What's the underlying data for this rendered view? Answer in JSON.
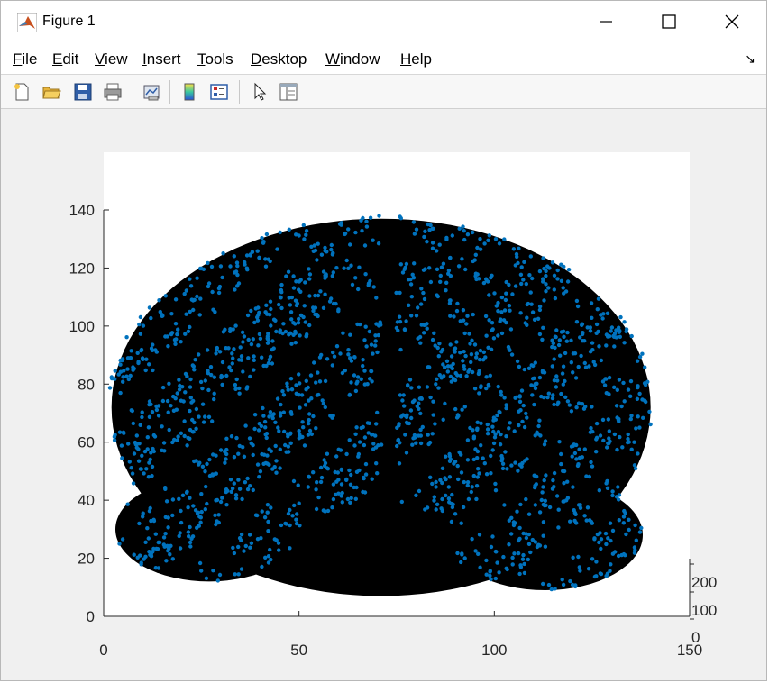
{
  "window": {
    "title": "Figure 1"
  },
  "menu": {
    "items": [
      {
        "u": "F",
        "rest": "ile"
      },
      {
        "u": "E",
        "rest": "dit"
      },
      {
        "u": "V",
        "rest": "iew"
      },
      {
        "u": "I",
        "rest": "nsert"
      },
      {
        "u": "T",
        "rest": "ools"
      },
      {
        "u": "D",
        "rest": "esktop"
      },
      {
        "u": "W",
        "rest": "indow"
      },
      {
        "u": "H",
        "rest": "elp"
      }
    ]
  },
  "toolbar": {
    "icons": [
      "new-figure-icon",
      "open-file-icon",
      "save-icon",
      "print-icon",
      "link-plot-icon",
      "colorbar-icon",
      "legend-icon",
      "pointer-icon",
      "property-editor-icon"
    ]
  },
  "chart_data": {
    "type": "scatter",
    "title": "",
    "xlabel": "",
    "ylabel": "",
    "zlabel": "",
    "xlim": [
      0,
      150
    ],
    "ylim": [
      0,
      140
    ],
    "zlim": [
      0,
      200
    ],
    "xticks": [
      "0",
      "50",
      "100",
      "150"
    ],
    "yticks": [
      "0",
      "20",
      "40",
      "60",
      "80",
      "100",
      "120",
      "140"
    ],
    "zticks": [
      "0",
      "100",
      "200"
    ],
    "marker_color": "#0072BD",
    "edge_color": "#000000",
    "description_shape": "brain surface mesh (front view), nodes plotted as points connected by edges"
  }
}
